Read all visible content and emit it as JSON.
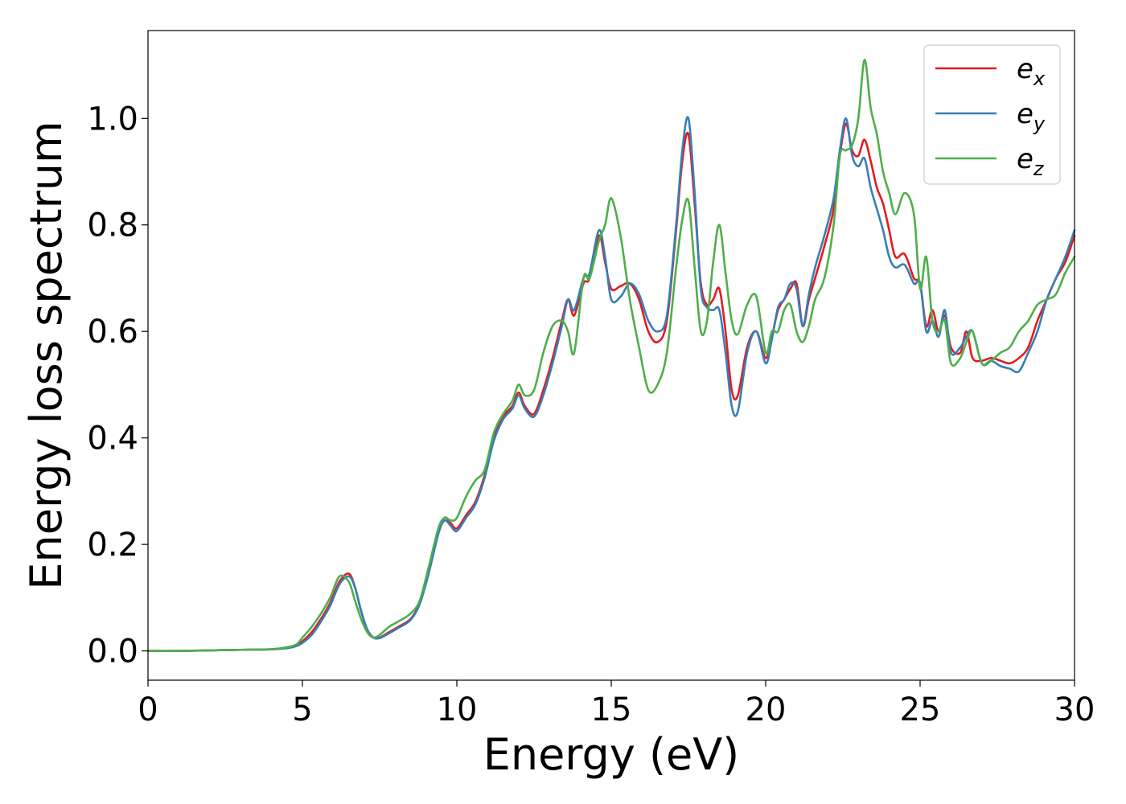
{
  "chart_data": {
    "type": "line",
    "title": "",
    "xlabel": "Energy (eV)",
    "ylabel": "Energy loss spectrum",
    "xlim": [
      0,
      30
    ],
    "ylim": [
      -0.055,
      1.165
    ],
    "xticks": [
      0,
      5,
      10,
      15,
      20,
      25,
      30
    ],
    "yticks": [
      0.0,
      0.2,
      0.4,
      0.6,
      0.8,
      1.0
    ],
    "xtick_labels": [
      "0",
      "5",
      "10",
      "15",
      "20",
      "25",
      "30"
    ],
    "ytick_labels": [
      "0.0",
      "0.2",
      "0.4",
      "0.6",
      "0.8",
      "1.0"
    ],
    "grid": false,
    "legend_position": "top-right",
    "series": [
      {
        "name": "e_x",
        "label_base": "e",
        "label_sub": "x",
        "color": "#e41a1c",
        "x": [
          0,
          1,
          2,
          3,
          4,
          4.5,
          4.8,
          5.0,
          5.3,
          5.6,
          5.9,
          6.2,
          6.5,
          6.7,
          6.9,
          7.1,
          7.3,
          7.5,
          7.8,
          8.1,
          8.5,
          8.8,
          9.1,
          9.4,
          9.6,
          9.8,
          10.0,
          10.3,
          10.6,
          10.9,
          11.2,
          11.5,
          11.8,
          12.0,
          12.2,
          12.5,
          12.8,
          13.1,
          13.4,
          13.6,
          13.8,
          14.1,
          14.3,
          14.6,
          14.8,
          15.0,
          15.3,
          15.6,
          15.9,
          16.2,
          16.5,
          16.8,
          17.1,
          17.3,
          17.5,
          17.7,
          17.9,
          18.1,
          18.3,
          18.5,
          18.7,
          18.9,
          19.1,
          19.4,
          19.7,
          20.0,
          20.2,
          20.4,
          20.6,
          20.8,
          21.0,
          21.2,
          21.4,
          21.6,
          21.9,
          22.2,
          22.4,
          22.6,
          22.8,
          23.0,
          23.2,
          23.4,
          23.6,
          23.8,
          24.0,
          24.2,
          24.5,
          24.8,
          25.0,
          25.2,
          25.4,
          25.6,
          25.8,
          26.0,
          26.3,
          26.5,
          26.7,
          27.0,
          27.3,
          27.6,
          27.9,
          28.2,
          28.5,
          28.8,
          29.1,
          29.4,
          29.7,
          30.0
        ],
        "y": [
          0.0,
          0.0,
          0.001,
          0.002,
          0.003,
          0.006,
          0.01,
          0.018,
          0.035,
          0.06,
          0.09,
          0.13,
          0.145,
          0.12,
          0.075,
          0.04,
          0.025,
          0.025,
          0.035,
          0.045,
          0.06,
          0.09,
          0.15,
          0.22,
          0.25,
          0.24,
          0.23,
          0.255,
          0.28,
          0.33,
          0.4,
          0.44,
          0.46,
          0.485,
          0.46,
          0.445,
          0.49,
          0.55,
          0.62,
          0.66,
          0.63,
          0.69,
          0.7,
          0.78,
          0.73,
          0.68,
          0.685,
          0.69,
          0.66,
          0.6,
          0.58,
          0.62,
          0.79,
          0.92,
          0.97,
          0.84,
          0.69,
          0.65,
          0.66,
          0.68,
          0.6,
          0.49,
          0.48,
          0.57,
          0.6,
          0.55,
          0.59,
          0.64,
          0.66,
          0.68,
          0.69,
          0.61,
          0.66,
          0.7,
          0.76,
          0.83,
          0.93,
          0.99,
          0.94,
          0.93,
          0.96,
          0.92,
          0.87,
          0.84,
          0.79,
          0.74,
          0.745,
          0.7,
          0.69,
          0.61,
          0.64,
          0.6,
          0.63,
          0.57,
          0.56,
          0.6,
          0.55,
          0.545,
          0.55,
          0.545,
          0.54,
          0.55,
          0.57,
          0.62,
          0.66,
          0.7,
          0.73,
          0.78
        ]
      },
      {
        "name": "e_y",
        "label_base": "e",
        "label_sub": "y",
        "color": "#377eb8",
        "x": [
          0,
          1,
          2,
          3,
          4,
          4.5,
          4.8,
          5.0,
          5.3,
          5.6,
          5.9,
          6.2,
          6.5,
          6.7,
          6.9,
          7.1,
          7.3,
          7.5,
          7.8,
          8.1,
          8.5,
          8.8,
          9.1,
          9.4,
          9.6,
          9.8,
          10.0,
          10.3,
          10.6,
          10.9,
          11.2,
          11.5,
          11.8,
          12.0,
          12.2,
          12.5,
          12.8,
          13.1,
          13.4,
          13.6,
          13.8,
          14.1,
          14.3,
          14.6,
          14.8,
          15.0,
          15.3,
          15.6,
          15.9,
          16.2,
          16.5,
          16.8,
          17.1,
          17.3,
          17.5,
          17.7,
          17.9,
          18.1,
          18.3,
          18.5,
          18.7,
          18.9,
          19.1,
          19.4,
          19.7,
          20.0,
          20.2,
          20.4,
          20.6,
          20.8,
          21.0,
          21.2,
          21.4,
          21.6,
          21.9,
          22.2,
          22.4,
          22.6,
          22.8,
          23.0,
          23.2,
          23.4,
          23.6,
          23.8,
          24.0,
          24.2,
          24.5,
          24.8,
          25.0,
          25.2,
          25.4,
          25.6,
          25.8,
          26.0,
          26.3,
          26.5,
          26.7,
          27.0,
          27.3,
          27.6,
          27.9,
          28.2,
          28.5,
          28.8,
          29.1,
          29.4,
          29.7,
          30.0
        ],
        "y": [
          0.0,
          0.0,
          0.001,
          0.002,
          0.003,
          0.005,
          0.009,
          0.015,
          0.03,
          0.055,
          0.085,
          0.125,
          0.14,
          0.12,
          0.075,
          0.04,
          0.025,
          0.024,
          0.033,
          0.043,
          0.058,
          0.088,
          0.148,
          0.22,
          0.245,
          0.235,
          0.225,
          0.25,
          0.275,
          0.325,
          0.395,
          0.435,
          0.455,
          0.48,
          0.455,
          0.44,
          0.48,
          0.54,
          0.61,
          0.66,
          0.64,
          0.7,
          0.71,
          0.79,
          0.74,
          0.66,
          0.665,
          0.69,
          0.67,
          0.62,
          0.6,
          0.63,
          0.8,
          0.94,
          1.0,
          0.86,
          0.68,
          0.645,
          0.64,
          0.64,
          0.56,
          0.46,
          0.45,
          0.56,
          0.6,
          0.54,
          0.585,
          0.645,
          0.66,
          0.69,
          0.68,
          0.61,
          0.67,
          0.72,
          0.78,
          0.85,
          0.94,
          1.0,
          0.93,
          0.91,
          0.925,
          0.87,
          0.83,
          0.79,
          0.74,
          0.72,
          0.725,
          0.69,
          0.69,
          0.6,
          0.62,
          0.59,
          0.64,
          0.56,
          0.57,
          0.59,
          0.6,
          0.54,
          0.545,
          0.535,
          0.53,
          0.525,
          0.56,
          0.6,
          0.66,
          0.7,
          0.74,
          0.79
        ]
      },
      {
        "name": "e_z",
        "label_base": "e",
        "label_sub": "z",
        "color": "#4daf4a",
        "x": [
          0,
          1,
          2,
          3,
          4,
          4.5,
          4.8,
          5.0,
          5.3,
          5.6,
          5.9,
          6.2,
          6.5,
          6.7,
          6.9,
          7.1,
          7.3,
          7.5,
          7.8,
          8.1,
          8.5,
          8.8,
          9.1,
          9.4,
          9.6,
          9.8,
          10.0,
          10.3,
          10.6,
          10.9,
          11.2,
          11.5,
          11.8,
          12.0,
          12.2,
          12.5,
          12.8,
          13.1,
          13.4,
          13.6,
          13.8,
          14.1,
          14.3,
          14.6,
          14.8,
          15.0,
          15.3,
          15.6,
          15.9,
          16.2,
          16.5,
          16.8,
          17.1,
          17.3,
          17.5,
          17.7,
          17.9,
          18.1,
          18.3,
          18.5,
          18.7,
          18.9,
          19.1,
          19.4,
          19.7,
          20.0,
          20.2,
          20.4,
          20.6,
          20.8,
          21.0,
          21.2,
          21.4,
          21.6,
          21.9,
          22.2,
          22.4,
          22.6,
          22.8,
          23.0,
          23.2,
          23.4,
          23.6,
          23.8,
          24.0,
          24.2,
          24.5,
          24.8,
          25.0,
          25.2,
          25.4,
          25.6,
          25.8,
          26.0,
          26.3,
          26.5,
          26.7,
          27.0,
          27.3,
          27.6,
          27.9,
          28.2,
          28.5,
          28.8,
          29.1,
          29.4,
          29.7,
          30.0
        ],
        "y": [
          0.0,
          0.0,
          0.001,
          0.002,
          0.003,
          0.007,
          0.012,
          0.025,
          0.045,
          0.07,
          0.1,
          0.14,
          0.13,
          0.095,
          0.06,
          0.035,
          0.025,
          0.03,
          0.045,
          0.055,
          0.07,
          0.095,
          0.16,
          0.23,
          0.25,
          0.245,
          0.25,
          0.29,
          0.32,
          0.34,
          0.41,
          0.445,
          0.47,
          0.5,
          0.48,
          0.49,
          0.56,
          0.61,
          0.62,
          0.6,
          0.56,
          0.7,
          0.7,
          0.77,
          0.8,
          0.85,
          0.78,
          0.66,
          0.57,
          0.49,
          0.5,
          0.56,
          0.72,
          0.81,
          0.845,
          0.72,
          0.6,
          0.62,
          0.73,
          0.8,
          0.71,
          0.62,
          0.595,
          0.65,
          0.665,
          0.56,
          0.6,
          0.6,
          0.64,
          0.65,
          0.6,
          0.58,
          0.61,
          0.66,
          0.7,
          0.8,
          0.93,
          0.94,
          0.95,
          1.0,
          1.11,
          1.02,
          0.97,
          0.9,
          0.86,
          0.82,
          0.86,
          0.82,
          0.68,
          0.74,
          0.62,
          0.6,
          0.62,
          0.54,
          0.55,
          0.58,
          0.6,
          0.54,
          0.545,
          0.56,
          0.57,
          0.6,
          0.62,
          0.65,
          0.66,
          0.67,
          0.71,
          0.74
        ]
      }
    ]
  }
}
